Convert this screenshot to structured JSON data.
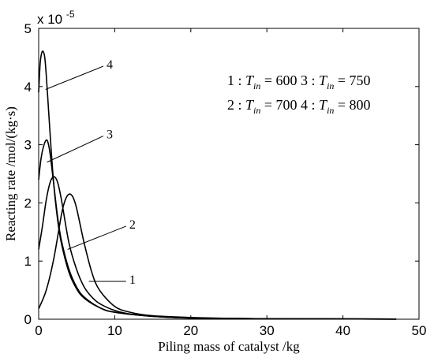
{
  "chart_data": {
    "type": "line",
    "xlabel": "Piling mass of catalyst /kg",
    "ylabel": "Reacting rate /mol/(kg·s)",
    "xlim": [
      0,
      50
    ],
    "ylim": [
      0,
      5
    ],
    "x_ticks": [
      "0",
      "10",
      "20",
      "30",
      "40",
      "50"
    ],
    "y_ticks": [
      "0",
      "1",
      "2",
      "3",
      "4",
      "5"
    ],
    "y_multiplier": {
      "base": "x 10",
      "exponent": "-5"
    },
    "grid": false,
    "legend_position": "top-right",
    "legend_lines": [
      [
        {
          "prefix": "1 : ",
          "var": "T",
          "sub": "in",
          "value": " = 600"
        },
        {
          "prefix": "3 : ",
          "var": "T",
          "sub": "in",
          "value": " = 750"
        }
      ],
      [
        {
          "prefix": "2 : ",
          "var": "T",
          "sub": "in",
          "value": " = 700"
        },
        {
          "prefix": "4 : ",
          "var": "T",
          "sub": "in",
          "value": " = 800"
        }
      ]
    ],
    "series": [
      {
        "name": "1",
        "label": "1",
        "x": [
          0,
          1,
          2,
          3,
          3.5,
          4,
          4.5,
          5,
          6,
          7,
          8,
          10,
          12,
          15,
          20,
          25,
          30,
          40,
          47
        ],
        "y": [
          0.18,
          0.5,
          1.05,
          1.8,
          2.05,
          2.15,
          2.1,
          1.9,
          1.3,
          0.8,
          0.5,
          0.22,
          0.12,
          0.06,
          0.03,
          0.015,
          0.008,
          0.004,
          0.003
        ]
      },
      {
        "name": "2",
        "label": "2",
        "x": [
          0,
          0.5,
          1,
          1.5,
          2,
          2.5,
          3,
          4,
          5,
          6,
          7,
          8,
          10,
          12,
          15,
          20,
          30,
          47
        ],
        "y": [
          1.2,
          1.6,
          2.05,
          2.35,
          2.45,
          2.35,
          2.05,
          1.3,
          0.85,
          0.55,
          0.38,
          0.27,
          0.15,
          0.09,
          0.05,
          0.02,
          0.008,
          0.003
        ]
      },
      {
        "name": "3",
        "label": "3",
        "x": [
          0,
          0.3,
          0.6,
          1,
          1.3,
          1.6,
          2,
          2.5,
          3,
          4,
          5,
          6,
          8,
          10,
          15,
          20,
          30,
          47
        ],
        "y": [
          2.4,
          2.75,
          2.95,
          3.08,
          3.0,
          2.75,
          2.3,
          1.75,
          1.35,
          0.85,
          0.55,
          0.38,
          0.2,
          0.12,
          0.05,
          0.02,
          0.008,
          0.003
        ]
      },
      {
        "name": "4",
        "label": "4",
        "x": [
          0,
          0.2,
          0.4,
          0.6,
          0.8,
          1.0,
          1.3,
          1.6,
          2,
          2.5,
          3,
          4,
          5,
          6,
          8,
          10,
          15,
          20,
          30,
          47
        ],
        "y": [
          3.9,
          4.4,
          4.58,
          4.6,
          4.5,
          4.2,
          3.6,
          3.0,
          2.3,
          1.7,
          1.3,
          0.8,
          0.52,
          0.36,
          0.2,
          0.12,
          0.05,
          0.02,
          0.008,
          0.003
        ]
      }
    ],
    "annotations": [
      {
        "text": "4",
        "from": [
          0.9,
          3.95
        ],
        "to": [
          8.5,
          4.35
        ]
      },
      {
        "text": "3",
        "from": [
          1.1,
          2.7
        ],
        "to": [
          8.5,
          3.15
        ]
      },
      {
        "text": "2",
        "from": [
          3.8,
          1.2
        ],
        "to": [
          11.5,
          1.6
        ]
      },
      {
        "text": "1",
        "from": [
          6.6,
          0.65
        ],
        "to": [
          11.5,
          0.65
        ]
      }
    ]
  }
}
